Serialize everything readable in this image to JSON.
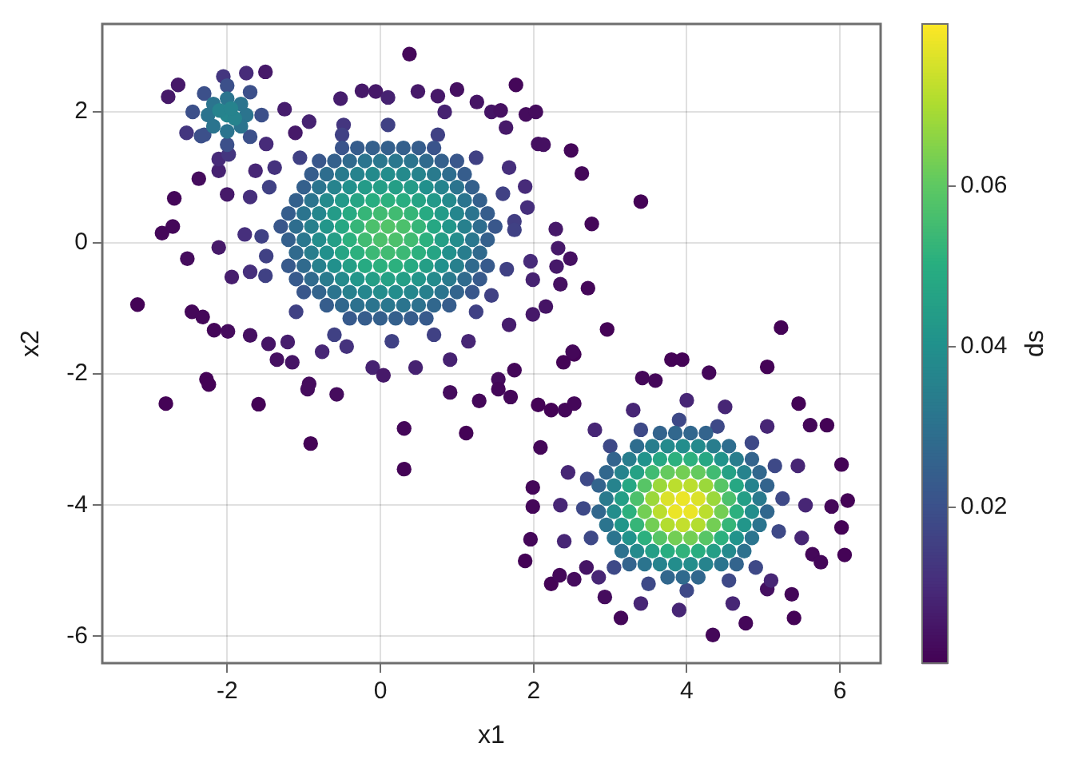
{
  "chart_data": {
    "type": "scatter",
    "xlabel": "x1",
    "ylabel": "x2",
    "clabel": "ds",
    "xlim": [
      -3.63,
      6.53
    ],
    "ylim": [
      -6.41,
      3.34
    ],
    "xticks": [
      -2,
      0,
      2,
      4,
      6
    ],
    "yticks": [
      -6,
      -4,
      -2,
      0,
      2
    ],
    "clim": [
      0.0006,
      0.0802
    ],
    "cticks": [
      0.02,
      0.04,
      0.06
    ],
    "grid": true,
    "marker": "circle",
    "series": [
      {
        "x": [
          2.39,
          2.53,
          3.8,
          3.94,
          4.29,
          5.05,
          3.42,
          3.59,
          2.06,
          2.23,
          2.41,
          2.53,
          2.09,
          1.99,
          1.99,
          1.96,
          1.89,
          2.23,
          2.34,
          2.53,
          3.14,
          4.34,
          4.77,
          5.4,
          5.83,
          6.02,
          6.1,
          6.06,
          6.02,
          5.61,
          5.46,
          5.64,
          5.75,
          5.37,
          5.05,
          2.93,
          2.69,
          5.89,
          5.23,
          2.96,
          -0.52,
          -0.24,
          -0.06,
          0.1,
          0.49,
          0.75,
          1.0,
          1.26,
          1.45,
          1.57,
          1.9,
          2.03,
          -0.93,
          -0.48,
          0.84,
          1.64,
          1.68,
          1.89,
          2.06,
          1.92,
          1.75,
          1.99,
          1.96,
          1.75,
          2.13,
          2.49,
          2.63,
          3.4,
          2.76,
          2.29,
          2.32,
          2.48,
          2.3,
          2.35,
          2.71,
          1.99,
          2.16,
          1.68,
          2.51,
          0.38,
          1.77,
          -3.17,
          -2.85,
          -2.71,
          -2.69,
          -2.37,
          -2.52,
          -2.0,
          -2.11,
          -2.8,
          -2.27,
          -2.24,
          -1.59,
          -0.93,
          -0.95,
          -0.91,
          -0.57,
          0.31,
          0.31,
          1.12,
          0.91,
          1.29,
          1.54,
          1.54,
          1.7,
          -2.17,
          -1.99,
          -1.7,
          -1.35,
          -1.15,
          -1.21,
          -1.46,
          -2.11,
          -1.94,
          -1.7,
          -1.49,
          -1.77,
          -2.46,
          -2.32,
          -1.7,
          -1.63,
          -1.38,
          -0.76,
          -0.44,
          -0.1,
          0.04,
          0.46,
          0.91,
          1.15,
          -2.77,
          -2.64,
          -1.5,
          -1.75,
          -2.05,
          -1.25,
          -2.53,
          -2.34,
          -1.49,
          -2.11,
          -1.98,
          -1.11,
          -1.55,
          -2.45,
          -2.0,
          -2.0,
          -1.7,
          -2.3,
          -1.7,
          -2.3,
          -1.75,
          -2.25,
          -2.0,
          -2.0,
          -1.82,
          -2.18,
          -1.82,
          -2.18,
          -2.0,
          -1.9,
          -2.1,
          -1.95,
          1.75,
          -1.55,
          0.1,
          0.15,
          1.25,
          -1.05,
          1.25,
          -1.1,
          1.65,
          -1.5,
          0.7,
          -0.5,
          0.75,
          -1.45,
          1.6,
          -0.6,
          1.45,
          5.55,
          2.35,
          4.0,
          3.9,
          5.05,
          2.8,
          5.1,
          2.85,
          5.5,
          2.45,
          4.5,
          3.4,
          4.6,
          3.3,
          5.45,
          2.4,
          5.25,
          2.65,
          3.9,
          4.0,
          4.85,
          3.0,
          4.9,
          3.05,
          5.2,
          2.7,
          4.4,
          3.5,
          4.55,
          3.4,
          2.75,
          5.15,
          -0.5,
          -0.3,
          -0.1,
          0.1,
          0.3,
          0.5,
          0.7,
          -0.8,
          -0.6,
          -0.4,
          -0.2,
          0.0,
          0.2,
          0.4,
          0.6,
          0.8,
          1.0,
          -0.9,
          -0.7,
          -0.5,
          -0.3,
          -0.1,
          0.1,
          0.3,
          0.5,
          0.7,
          0.9,
          1.1,
          -1.0,
          -0.8,
          -0.6,
          -0.4,
          -0.2,
          0.0,
          0.2,
          0.4,
          0.6,
          0.8,
          1.0,
          1.2,
          -1.1,
          -0.9,
          -0.7,
          -0.5,
          -0.3,
          -0.1,
          0.1,
          0.3,
          0.5,
          0.7,
          0.9,
          1.1,
          1.3,
          -1.2,
          -1.0,
          -0.8,
          -0.6,
          -0.4,
          -0.2,
          0.0,
          0.2,
          0.4,
          0.6,
          0.8,
          1.0,
          1.2,
          1.4,
          -1.3,
          -1.1,
          -0.9,
          -0.7,
          -0.5,
          -0.3,
          -0.1,
          0.1,
          0.3,
          0.5,
          0.7,
          0.9,
          1.1,
          1.3,
          1.5,
          -1.2,
          -1.0,
          -0.8,
          -0.6,
          -0.4,
          -0.2,
          0.0,
          0.2,
          0.4,
          0.6,
          0.8,
          1.0,
          1.2,
          1.4,
          -1.1,
          -0.9,
          -0.7,
          -0.5,
          -0.3,
          -0.1,
          0.1,
          0.3,
          0.5,
          0.7,
          0.9,
          1.1,
          1.3,
          -1.2,
          -1.0,
          -0.8,
          -0.6,
          -0.4,
          -0.2,
          0.0,
          0.2,
          0.4,
          0.6,
          0.8,
          1.0,
          1.2,
          1.4,
          -1.1,
          -0.9,
          -0.7,
          -0.5,
          -0.3,
          -0.1,
          0.1,
          0.3,
          0.5,
          0.7,
          0.9,
          1.1,
          1.3,
          -1.0,
          -0.8,
          -0.6,
          -0.4,
          -0.2,
          0.0,
          0.2,
          0.4,
          0.6,
          0.8,
          1.0,
          1.2,
          -0.7,
          -0.5,
          -0.3,
          -0.1,
          0.1,
          0.3,
          0.5,
          0.7,
          0.9,
          -0.4,
          -0.2,
          0.0,
          0.2,
          0.4,
          0.6,
          3.65,
          3.85,
          4.05,
          4.25,
          3.35,
          3.55,
          3.75,
          3.95,
          4.15,
          4.35,
          4.55,
          3.05,
          3.25,
          3.45,
          3.65,
          3.85,
          4.05,
          4.25,
          4.45,
          4.65,
          4.85,
          2.95,
          3.15,
          3.35,
          3.55,
          3.75,
          3.95,
          4.15,
          4.35,
          4.55,
          4.75,
          4.95,
          2.85,
          3.05,
          3.25,
          3.45,
          3.65,
          3.85,
          4.05,
          4.25,
          4.45,
          4.65,
          4.85,
          5.05,
          2.95,
          3.15,
          3.35,
          3.55,
          3.75,
          3.95,
          4.15,
          4.35,
          4.55,
          4.75,
          4.95,
          2.85,
          3.05,
          3.25,
          3.45,
          3.65,
          3.85,
          4.05,
          4.25,
          4.45,
          4.65,
          4.85,
          5.05,
          2.95,
          3.15,
          3.35,
          3.55,
          3.75,
          3.95,
          4.15,
          4.35,
          4.55,
          4.75,
          4.95,
          3.05,
          3.25,
          3.45,
          3.65,
          3.85,
          4.05,
          4.25,
          4.45,
          4.65,
          4.85,
          3.15,
          3.35,
          3.55,
          3.75,
          3.95,
          4.15,
          4.35,
          4.55,
          4.75,
          3.25,
          3.45,
          3.65,
          3.85,
          4.05,
          4.25,
          4.45,
          4.65,
          3.75,
          3.95,
          4.15
        ],
        "values": [
          -1.82,
          -1.7,
          -1.78,
          -1.78,
          -1.98,
          -1.89,
          -2.06,
          -2.1,
          -2.47,
          -2.55,
          -2.55,
          -2.45,
          -3.12,
          -3.73,
          -4.02,
          -4.52,
          -4.85,
          -5.2,
          -5.07,
          -5.13,
          -5.72,
          -5.98,
          -5.8,
          -5.72,
          -2.78,
          -3.38,
          -3.93,
          -4.76,
          -4.34,
          -2.78,
          -2.45,
          -4.75,
          -4.87,
          -5.36,
          -5.28,
          -5.4,
          -4.95,
          -4.02,
          -1.29,
          -1.32,
          2.2,
          2.32,
          2.31,
          2.22,
          2.31,
          2.24,
          2.34,
          2.15,
          2.0,
          2.02,
          1.96,
          2.0,
          1.85,
          1.8,
          2.0,
          1.76,
          1.15,
          0.86,
          1.51,
          0.54,
          0.33,
          -0.56,
          -0.28,
          -1.94,
          1.5,
          1.41,
          1.06,
          0.63,
          0.29,
          0.21,
          -0.08,
          -0.24,
          -0.36,
          -0.63,
          -0.69,
          -1.09,
          -0.97,
          -1.25,
          -1.66,
          2.88,
          2.41,
          -0.94,
          0.15,
          0.25,
          0.68,
          0.98,
          -0.24,
          0.74,
          1.1,
          -2.45,
          -2.08,
          -2.16,
          -2.46,
          -2.15,
          -2.23,
          -3.06,
          -2.31,
          -2.83,
          -3.45,
          -2.9,
          -2.28,
          -2.41,
          -2.08,
          -2.23,
          -2.35,
          -1.33,
          -1.35,
          -1.41,
          -1.78,
          -1.82,
          -1.51,
          -1.54,
          -0.07,
          -0.52,
          -0.44,
          -0.2,
          0.13,
          -1.05,
          -1.13,
          0.7,
          1.1,
          1.15,
          -1.66,
          -1.58,
          -1.9,
          -2.02,
          -1.9,
          -1.78,
          -1.5,
          2.23,
          2.41,
          2.61,
          2.59,
          2.54,
          2.04,
          1.68,
          1.63,
          1.51,
          1.28,
          1.35,
          1.68,
          1.95,
          2.0,
          2.4,
          1.5,
          2.3,
          1.65,
          1.62,
          2.28,
          1.95,
          1.95,
          2.2,
          1.7,
          2.12,
          1.78,
          1.78,
          2.12,
          1.95,
          1.9,
          2.02,
          2.05,
          0.2,
          0.1,
          1.8,
          -1.5,
          1.3,
          1.3,
          -1.05,
          -1.05,
          -0.4,
          -0.5,
          -1.4,
          1.65,
          1.65,
          0.85,
          0.75,
          -1.4,
          -0.8,
          -4.0,
          -4.0,
          -2.4,
          -5.6,
          -2.8,
          -2.85,
          -5.15,
          -5.1,
          -4.5,
          -3.5,
          -2.5,
          -5.5,
          -5.5,
          -2.55,
          -3.4,
          -4.55,
          -3.9,
          -4.05,
          -2.7,
          -5.3,
          -3.05,
          -3.1,
          -4.95,
          -4.95,
          -4.4,
          -3.6,
          -2.8,
          -5.2,
          -5.15,
          -2.85,
          -4.5,
          -3.4,
          1.45,
          1.45,
          1.45,
          1.45,
          1.45,
          1.45,
          1.45,
          1.25,
          1.25,
          1.25,
          1.25,
          1.25,
          1.25,
          1.25,
          1.25,
          1.25,
          1.25,
          1.05,
          1.05,
          1.05,
          1.05,
          1.05,
          1.05,
          1.05,
          1.05,
          1.05,
          1.05,
          1.05,
          0.85,
          0.85,
          0.85,
          0.85,
          0.85,
          0.85,
          0.85,
          0.85,
          0.85,
          0.85,
          0.85,
          0.85,
          0.65,
          0.65,
          0.65,
          0.65,
          0.65,
          0.65,
          0.65,
          0.65,
          0.65,
          0.65,
          0.65,
          0.65,
          0.65,
          0.45,
          0.45,
          0.45,
          0.45,
          0.45,
          0.45,
          0.45,
          0.45,
          0.45,
          0.45,
          0.45,
          0.45,
          0.45,
          0.45,
          0.25,
          0.25,
          0.25,
          0.25,
          0.25,
          0.25,
          0.25,
          0.25,
          0.25,
          0.25,
          0.25,
          0.25,
          0.25,
          0.25,
          0.25,
          0.05,
          0.05,
          0.05,
          0.05,
          0.05,
          0.05,
          0.05,
          0.05,
          0.05,
          0.05,
          0.05,
          0.05,
          0.05,
          0.05,
          -0.15,
          -0.15,
          -0.15,
          -0.15,
          -0.15,
          -0.15,
          -0.15,
          -0.15,
          -0.15,
          -0.15,
          -0.15,
          -0.15,
          -0.15,
          -0.35,
          -0.35,
          -0.35,
          -0.35,
          -0.35,
          -0.35,
          -0.35,
          -0.35,
          -0.35,
          -0.35,
          -0.35,
          -0.35,
          -0.35,
          -0.35,
          -0.55,
          -0.55,
          -0.55,
          -0.55,
          -0.55,
          -0.55,
          -0.55,
          -0.55,
          -0.55,
          -0.55,
          -0.55,
          -0.55,
          -0.55,
          -0.75,
          -0.75,
          -0.75,
          -0.75,
          -0.75,
          -0.75,
          -0.75,
          -0.75,
          -0.75,
          -0.75,
          -0.75,
          -0.75,
          -0.95,
          -0.95,
          -0.95,
          -0.95,
          -0.95,
          -0.95,
          -0.95,
          -0.95,
          -0.95,
          -1.15,
          -1.15,
          -1.15,
          -1.15,
          -1.15,
          -1.15,
          -2.9,
          -2.9,
          -2.9,
          -2.9,
          -3.1,
          -3.1,
          -3.1,
          -3.1,
          -3.1,
          -3.1,
          -3.1,
          -3.3,
          -3.3,
          -3.3,
          -3.3,
          -3.3,
          -3.3,
          -3.3,
          -3.3,
          -3.3,
          -3.3,
          -3.5,
          -3.5,
          -3.5,
          -3.5,
          -3.5,
          -3.5,
          -3.5,
          -3.5,
          -3.5,
          -3.5,
          -3.5,
          -3.7,
          -3.7,
          -3.7,
          -3.7,
          -3.7,
          -3.7,
          -3.7,
          -3.7,
          -3.7,
          -3.7,
          -3.7,
          -3.7,
          -3.9,
          -3.9,
          -3.9,
          -3.9,
          -3.9,
          -3.9,
          -3.9,
          -3.9,
          -3.9,
          -3.9,
          -3.9,
          -4.1,
          -4.1,
          -4.1,
          -4.1,
          -4.1,
          -4.1,
          -4.1,
          -4.1,
          -4.1,
          -4.1,
          -4.1,
          -4.1,
          -4.3,
          -4.3,
          -4.3,
          -4.3,
          -4.3,
          -4.3,
          -4.3,
          -4.3,
          -4.3,
          -4.3,
          -4.3,
          -4.5,
          -4.5,
          -4.5,
          -4.5,
          -4.5,
          -4.5,
          -4.5,
          -4.5,
          -4.5,
          -4.5,
          -4.7,
          -4.7,
          -4.7,
          -4.7,
          -4.7,
          -4.7,
          -4.7,
          -4.7,
          -4.7,
          -4.9,
          -4.9,
          -4.9,
          -4.9,
          -4.9,
          -4.9,
          -4.9,
          -4.9,
          -5.1,
          -5.1,
          -5.1
        ],
        "cvalues": [
          0.001,
          0.001,
          0.001,
          0.001,
          0.002,
          0.001,
          0.002,
          0.002,
          0.001,
          0.001,
          0.002,
          0.002,
          0.002,
          0.002,
          0.002,
          0.002,
          0.001,
          0.001,
          0.002,
          0.003,
          0.002,
          0.002,
          0.002,
          0.001,
          0.001,
          0.001,
          0.001,
          0.001,
          0.001,
          0.002,
          0.001,
          0.002,
          0.002,
          0.002,
          0.004,
          0.003,
          0.005,
          0.002,
          0.001,
          0.001,
          0.007,
          0.006,
          0.006,
          0.008,
          0.006,
          0.006,
          0.004,
          0.005,
          0.005,
          0.004,
          0.003,
          0.003,
          0.008,
          0.013,
          0.008,
          0.006,
          0.011,
          0.01,
          0.004,
          0.011,
          0.015,
          0.008,
          0.01,
          0.002,
          0.004,
          0.002,
          0.002,
          0.001,
          0.002,
          0.006,
          0.006,
          0.004,
          0.006,
          0.004,
          0.002,
          0.006,
          0.005,
          0.007,
          0.002,
          0.002,
          0.002,
          0.001,
          0.002,
          0.002,
          0.002,
          0.003,
          0.003,
          0.006,
          0.008,
          0.001,
          0.001,
          0.001,
          0.001,
          0.003,
          0.003,
          0.001,
          0.003,
          0.002,
          0.001,
          0.001,
          0.003,
          0.002,
          0.003,
          0.002,
          0.002,
          0.002,
          0.003,
          0.004,
          0.004,
          0.005,
          0.007,
          0.005,
          0.006,
          0.007,
          0.011,
          0.016,
          0.011,
          0.002,
          0.002,
          0.011,
          0.009,
          0.012,
          0.009,
          0.012,
          0.008,
          0.006,
          0.008,
          0.008,
          0.009,
          0.006,
          0.006,
          0.006,
          0.01,
          0.013,
          0.007,
          0.013,
          0.02,
          0.01,
          0.01,
          0.013,
          0.006,
          0.02,
          0.02,
          0.02,
          0.02,
          0.02,
          0.02,
          0.02,
          0.02,
          0.031,
          0.031,
          0.031,
          0.031,
          0.031,
          0.031,
          0.031,
          0.031,
          0.037,
          0.036,
          0.036,
          0.036,
          0.016,
          0.016,
          0.016,
          0.016,
          0.016,
          0.016,
          0.016,
          0.016,
          0.016,
          0.016,
          0.016,
          0.016,
          0.016,
          0.016,
          0.016,
          0.016,
          0.016,
          0.009,
          0.009,
          0.009,
          0.009,
          0.009,
          0.009,
          0.009,
          0.009,
          0.009,
          0.009,
          0.009,
          0.009,
          0.009,
          0.009,
          0.009,
          0.009,
          0.018,
          0.018,
          0.018,
          0.018,
          0.018,
          0.018,
          0.018,
          0.018,
          0.018,
          0.018,
          0.018,
          0.018,
          0.018,
          0.018,
          0.018,
          0.018,
          0.021,
          0.024,
          0.025,
          0.025,
          0.025,
          0.024,
          0.021,
          0.022,
          0.025,
          0.028,
          0.031,
          0.032,
          0.032,
          0.031,
          0.028,
          0.025,
          0.022,
          0.024,
          0.029,
          0.033,
          0.036,
          0.038,
          0.039,
          0.038,
          0.036,
          0.033,
          0.029,
          0.024,
          0.025,
          0.031,
          0.036,
          0.04,
          0.044,
          0.045,
          0.045,
          0.044,
          0.04,
          0.036,
          0.031,
          0.025,
          0.025,
          0.031,
          0.038,
          0.043,
          0.047,
          0.05,
          0.051,
          0.05,
          0.047,
          0.043,
          0.038,
          0.031,
          0.025,
          0.024,
          0.031,
          0.037,
          0.044,
          0.049,
          0.053,
          0.055,
          0.055,
          0.053,
          0.049,
          0.044,
          0.037,
          0.031,
          0.024,
          0.022,
          0.029,
          0.035,
          0.042,
          0.048,
          0.053,
          0.057,
          0.058,
          0.057,
          0.053,
          0.048,
          0.042,
          0.035,
          0.029,
          0.022,
          0.025,
          0.032,
          0.039,
          0.045,
          0.051,
          0.055,
          0.057,
          0.057,
          0.055,
          0.051,
          0.045,
          0.039,
          0.032,
          0.025,
          0.028,
          0.034,
          0.04,
          0.047,
          0.051,
          0.054,
          0.055,
          0.054,
          0.051,
          0.047,
          0.04,
          0.034,
          0.028,
          0.023,
          0.028,
          0.035,
          0.04,
          0.045,
          0.049,
          0.051,
          0.051,
          0.049,
          0.045,
          0.04,
          0.035,
          0.028,
          0.023,
          0.023,
          0.028,
          0.033,
          0.038,
          0.042,
          0.045,
          0.046,
          0.045,
          0.042,
          0.038,
          0.033,
          0.028,
          0.023,
          0.022,
          0.026,
          0.031,
          0.035,
          0.037,
          0.039,
          0.039,
          0.037,
          0.035,
          0.031,
          0.026,
          0.022,
          0.024,
          0.027,
          0.03,
          0.031,
          0.032,
          0.031,
          0.03,
          0.027,
          0.024,
          0.023,
          0.024,
          0.025,
          0.025,
          0.024,
          0.023,
          0.026,
          0.027,
          0.027,
          0.026,
          0.029,
          0.034,
          0.038,
          0.039,
          0.038,
          0.034,
          0.029,
          0.026,
          0.034,
          0.041,
          0.048,
          0.051,
          0.051,
          0.048,
          0.041,
          0.034,
          0.026,
          0.027,
          0.036,
          0.046,
          0.055,
          0.061,
          0.063,
          0.061,
          0.055,
          0.046,
          0.036,
          0.027,
          0.026,
          0.036,
          0.048,
          0.059,
          0.068,
          0.072,
          0.072,
          0.068,
          0.059,
          0.048,
          0.036,
          0.026,
          0.033,
          0.045,
          0.057,
          0.068,
          0.076,
          0.078,
          0.076,
          0.068,
          0.057,
          0.045,
          0.033,
          0.027,
          0.039,
          0.051,
          0.063,
          0.072,
          0.078,
          0.078,
          0.072,
          0.063,
          0.051,
          0.039,
          0.027,
          0.031,
          0.042,
          0.053,
          0.063,
          0.071,
          0.073,
          0.071,
          0.063,
          0.053,
          0.042,
          0.031,
          0.031,
          0.041,
          0.051,
          0.059,
          0.063,
          0.063,
          0.059,
          0.051,
          0.041,
          0.031,
          0.03,
          0.038,
          0.045,
          0.05,
          0.052,
          0.05,
          0.045,
          0.038,
          0.03,
          0.026,
          0.031,
          0.036,
          0.039,
          0.039,
          0.036,
          0.031,
          0.026,
          0.027,
          0.028,
          0.027
        ]
      }
    ]
  }
}
